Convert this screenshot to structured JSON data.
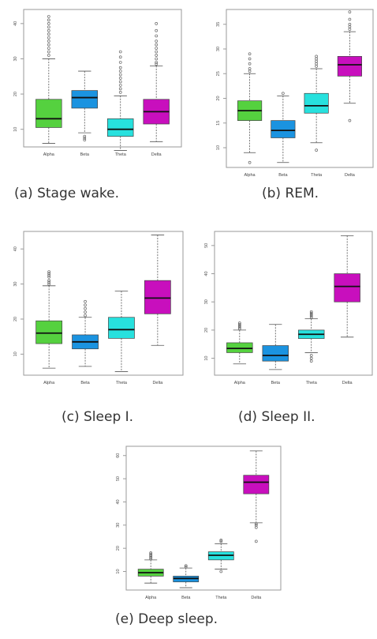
{
  "chart_data": [
    {
      "type": "box",
      "caption": "(a)  Stage wake.",
      "categories": [
        "Alpha",
        "Beta",
        "Theta",
        "Delta"
      ],
      "y_ticks": [
        "10",
        "20",
        "30",
        "40"
      ],
      "ylim": [
        5,
        44
      ],
      "series": [
        {
          "color": "#55d13f",
          "box": {
            "min": 6,
            "q1": 10.5,
            "median": 13,
            "q3": 18.5,
            "max": 30
          },
          "outliers": [
            31,
            32,
            33,
            34,
            35,
            36,
            37,
            38,
            39,
            40,
            41,
            42
          ]
        },
        {
          "color": "#1b93e0",
          "box": {
            "min": 9,
            "q1": 16,
            "median": 19,
            "q3": 21,
            "max": 26.5
          },
          "outliers": [
            7,
            7.5,
            8
          ]
        },
        {
          "color": "#27e1de",
          "box": {
            "min": 4,
            "q1": 8,
            "median": 10,
            "q3": 13,
            "max": 19.5
          },
          "outliers": [
            20.5,
            21.5,
            22.5,
            23.5,
            24.5,
            25.5,
            26.5,
            27.5,
            29,
            30.5,
            32
          ]
        },
        {
          "color": "#c80fbd",
          "box": {
            "min": 6.5,
            "q1": 11.5,
            "median": 15,
            "q3": 18.5,
            "max": 28
          },
          "outliers": [
            28.5,
            29,
            30,
            31,
            32,
            33,
            34,
            35,
            36.5,
            38,
            40
          ]
        }
      ]
    },
    {
      "type": "box",
      "caption": "(b) REM.",
      "categories": [
        "Alpha",
        "Beta",
        "Theta",
        "Delta"
      ],
      "y_ticks": [
        "10",
        "15",
        "20",
        "25",
        "30",
        "35"
      ],
      "ylim": [
        6,
        38
      ],
      "series": [
        {
          "color": "#55d13f",
          "box": {
            "min": 9,
            "q1": 15.5,
            "median": 17.5,
            "q3": 19.5,
            "max": 25
          },
          "outliers": [
            7,
            25.5,
            26,
            27,
            28,
            29
          ]
        },
        {
          "color": "#1b93e0",
          "box": {
            "min": 7,
            "q1": 12,
            "median": 13.5,
            "q3": 15.5,
            "max": 20.5
          },
          "outliers": [
            21
          ]
        },
        {
          "color": "#27e1de",
          "box": {
            "min": 11,
            "q1": 17,
            "median": 18.5,
            "q3": 21,
            "max": 26
          },
          "outliers": [
            9.5,
            26.5,
            27,
            27.5,
            28,
            28.5
          ]
        },
        {
          "color": "#c80fbd",
          "box": {
            "min": 19,
            "q1": 24.5,
            "median": 26.8,
            "q3": 28.5,
            "max": 33.5
          },
          "outliers": [
            15.5,
            34,
            34.5,
            35,
            36,
            37.5
          ]
        }
      ]
    },
    {
      "type": "box",
      "caption": "(c) Sleep I.",
      "categories": [
        "Alpha",
        "Beta",
        "Theta",
        "Delta"
      ],
      "y_ticks": [
        "10",
        "20",
        "30",
        "40"
      ],
      "ylim": [
        4,
        45
      ],
      "series": [
        {
          "color": "#55d13f",
          "box": {
            "min": 6,
            "q1": 13,
            "median": 16,
            "q3": 19.5,
            "max": 29.5
          },
          "outliers": [
            30,
            30.5,
            31,
            32,
            32.5,
            33,
            33.5
          ]
        },
        {
          "color": "#1b93e0",
          "box": {
            "min": 6.5,
            "q1": 11.5,
            "median": 13.5,
            "q3": 15.5,
            "max": 20.5
          },
          "outliers": [
            21,
            22,
            23,
            24,
            25
          ]
        },
        {
          "color": "#27e1de",
          "box": {
            "min": 5,
            "q1": 14.5,
            "median": 17,
            "q3": 20.5,
            "max": 28
          },
          "outliers": []
        },
        {
          "color": "#c80fbd",
          "box": {
            "min": 12.5,
            "q1": 21.5,
            "median": 26,
            "q3": 31,
            "max": 44
          },
          "outliers": []
        }
      ]
    },
    {
      "type": "box",
      "caption": "(d) Sleep II.",
      "categories": [
        "Alpha",
        "Beta",
        "Theta",
        "Delta"
      ],
      "y_ticks": [
        "10",
        "20",
        "30",
        "40",
        "50"
      ],
      "ylim": [
        4,
        55
      ],
      "series": [
        {
          "color": "#55d13f",
          "box": {
            "min": 8,
            "q1": 12,
            "median": 13.5,
            "q3": 15.5,
            "max": 20
          },
          "outliers": [
            20.5,
            21,
            21.5,
            22,
            22.5
          ]
        },
        {
          "color": "#1b93e0",
          "box": {
            "min": 6,
            "q1": 9,
            "median": 11,
            "q3": 14.5,
            "max": 22
          },
          "outliers": []
        },
        {
          "color": "#27e1de",
          "box": {
            "min": 12,
            "q1": 17,
            "median": 18.5,
            "q3": 20,
            "max": 24
          },
          "outliers": [
            9,
            10,
            11,
            24.5,
            25,
            25.5,
            26,
            26.5
          ]
        },
        {
          "color": "#c80fbd",
          "box": {
            "min": 17.5,
            "q1": 30,
            "median": 35.5,
            "q3": 40,
            "max": 53.5
          },
          "outliers": []
        }
      ]
    },
    {
      "type": "box",
      "caption": "(e)  Deep sleep.",
      "categories": [
        "Alpha",
        "Beta",
        "Theta",
        "Delta"
      ],
      "y_ticks": [
        "10",
        "20",
        "30",
        "40",
        "50",
        "60"
      ],
      "ylim": [
        2,
        64
      ],
      "series": [
        {
          "color": "#55d13f",
          "box": {
            "min": 5,
            "q1": 8,
            "median": 9.5,
            "q3": 11,
            "max": 15
          },
          "outliers": [
            15.5,
            16,
            16.5,
            17,
            17.5,
            18
          ]
        },
        {
          "color": "#1b93e0",
          "box": {
            "min": 3,
            "q1": 5.5,
            "median": 7,
            "q3": 8,
            "max": 11.5
          },
          "outliers": [
            12,
            12.5
          ]
        },
        {
          "color": "#27e1de",
          "box": {
            "min": 11,
            "q1": 15,
            "median": 17,
            "q3": 18.5,
            "max": 22
          },
          "outliers": [
            10,
            23,
            23.5
          ]
        },
        {
          "color": "#c80fbd",
          "box": {
            "min": 31,
            "q1": 43.5,
            "median": 48.5,
            "q3": 51.5,
            "max": 62
          },
          "outliers": [
            23,
            29,
            30,
            30.5
          ]
        }
      ]
    }
  ]
}
